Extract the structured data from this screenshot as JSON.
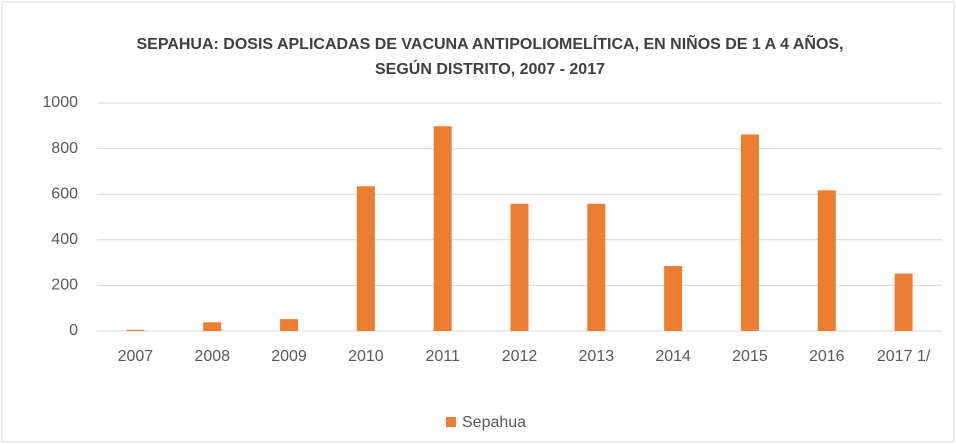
{
  "chart_data": {
    "type": "bar",
    "title": "SEPAHUA: DOSIS APLICADAS DE VACUNA ANTIPOLIOMELÍTICA, EN NIÑOS DE 1 A 4 AÑOS, SEGÚN  DISTRITO, 2007 - 2017",
    "categories": [
      "2007",
      "2008",
      "2009",
      "2010",
      "2011",
      "2012",
      "2013",
      "2014",
      "2015",
      "2016",
      "2017 1/"
    ],
    "series": [
      {
        "name": "Sepahua",
        "color": "#ed7d31",
        "values": [
          5,
          38,
          52,
          635,
          898,
          558,
          558,
          285,
          862,
          617,
          252
        ]
      }
    ],
    "ylim": [
      0,
      1000
    ],
    "yticks": [
      0,
      200,
      400,
      600,
      800,
      1000
    ],
    "grid": true,
    "legend": "bottom"
  }
}
